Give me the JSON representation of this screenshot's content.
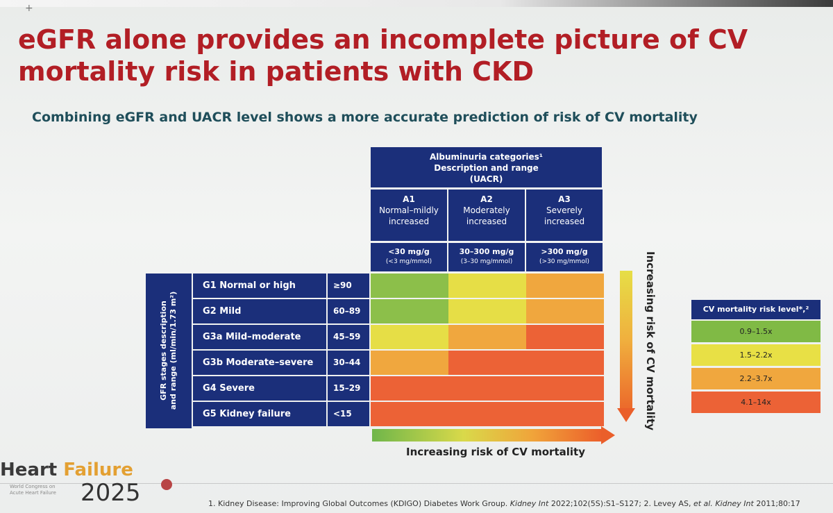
{
  "slide": {
    "title": "eGFR alone provides an incomplete picture of CV mortality risk in patients with CKD",
    "subtitle": "Combining eGFR and UACR level shows a more accurate prediction of risk of CV mortality"
  },
  "albuminuria": {
    "header_line1": "Albuminuria categories¹",
    "header_line2": "Description and range",
    "header_line3": "(UACR)",
    "columns": [
      {
        "code": "A1",
        "desc1": "Normal–mildly",
        "desc2": "increased",
        "range": "<30 mg/g",
        "range2": "(<3 mg/mmol)"
      },
      {
        "code": "A2",
        "desc1": "Moderately",
        "desc2": "increased",
        "range": "30–300 mg/g",
        "range2": "(3–30 mg/mmol)"
      },
      {
        "code": "A3",
        "desc1": "Severely",
        "desc2": "increased",
        "range": ">300 mg/g",
        "range2": "(>30 mg/mmol)"
      }
    ]
  },
  "gfr": {
    "side_label_line1": "GFR stages description",
    "side_label_line2": "and range (ml/min/1.73 m²)",
    "rows": [
      {
        "label": "G1 Normal or high",
        "range": "≥90"
      },
      {
        "label": "G2 Mild",
        "range": "60–89"
      },
      {
        "label": "G3a Mild–moderate",
        "range": "45–59"
      },
      {
        "label": "G3b Moderate–severe",
        "range": "30–44"
      },
      {
        "label": "G4 Severe",
        "range": "15–29"
      },
      {
        "label": "G5 Kidney failure",
        "range": "<15"
      }
    ]
  },
  "heatmap": {
    "levels": [
      [
        1,
        2,
        3
      ],
      [
        1,
        2,
        3
      ],
      [
        2,
        3,
        4
      ],
      [
        3,
        4,
        4
      ],
      [
        4,
        4,
        4
      ],
      [
        4,
        4,
        4
      ]
    ],
    "colors": {
      "1": "#8cbf4a",
      "2": "#e6de46",
      "3": "#f0a73e",
      "4": "#ec6236"
    }
  },
  "arrows": {
    "vertical_label": "Increasing risk of CV mortality",
    "horizontal_label": "Increasing risk of CV mortality"
  },
  "legend": {
    "header": "CV mortality risk level*,²",
    "items": [
      {
        "label": "0.9–1.5x",
        "color": "#80ba45"
      },
      {
        "label": "1.5–2.2x",
        "color": "#e8e045"
      },
      {
        "label": "2.2–3.7x",
        "color": "#f0a73e"
      },
      {
        "label": "4.1–14x",
        "color": "#ec6236"
      }
    ]
  },
  "brand": {
    "name_part1": "Heart ",
    "name_part2": "Failure",
    "sub_line1": "World Congress on",
    "sub_line2": "Acute Heart Failure",
    "year": "2025"
  },
  "footnote": {
    "part1": "1. Kidney Disease: Improving Global Outcomes (KDIGO) Diabetes Work Group. ",
    "journal1": "Kidney Int",
    "part2": " 2022;102(5S):S1–S127; 2. Levey AS, ",
    "etal": "et al.",
    "part3": " ",
    "journal2": "Kidney Int",
    "part4": " 2011;80:17"
  }
}
